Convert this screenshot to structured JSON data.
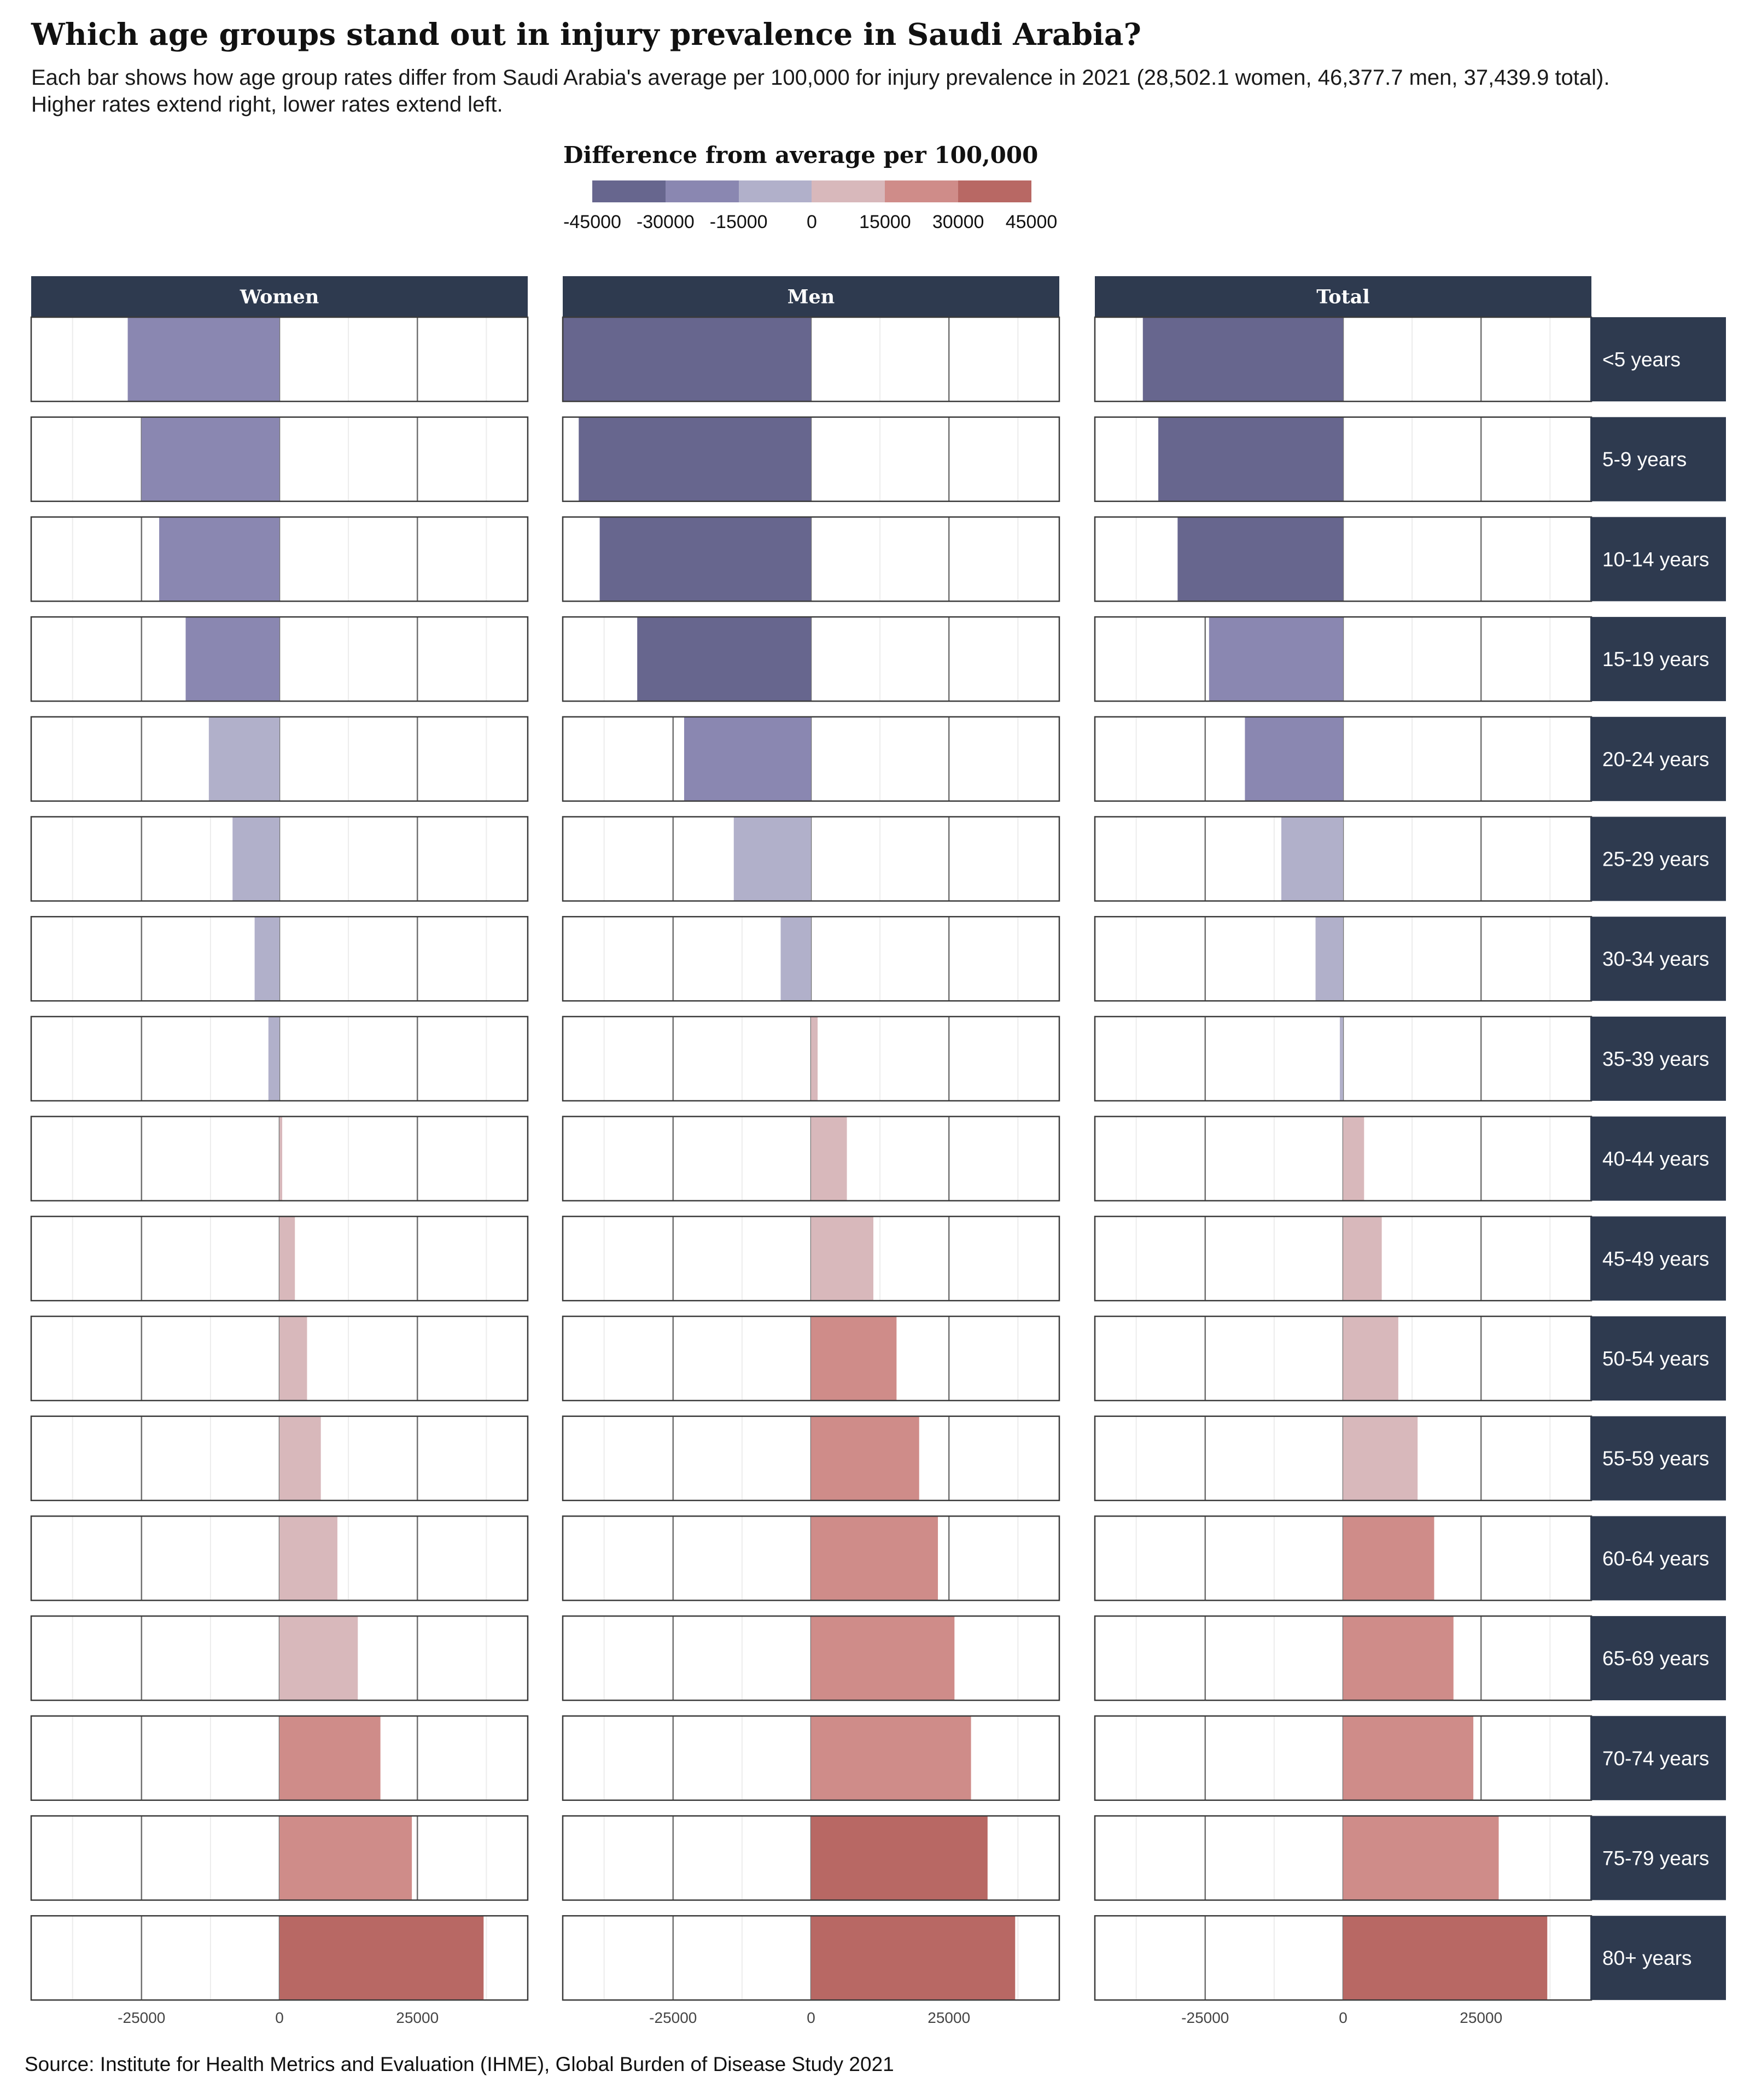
{
  "title": "Which age groups stand out in injury prevalence in Saudi Arabia?",
  "subtitle": "Each bar shows how age group rates differ from Saudi Arabia's average per 100,000 for injury prevalence in 2021 (28,502.1 women, 46,377.7 men, 37,439.9 total). Higher rates extend right, lower rates extend left.",
  "legend": {
    "title": "Difference from average per 100,000",
    "ticks": [
      "-45000",
      "-30000",
      "-15000",
      "0",
      "15000",
      "30000",
      "45000"
    ],
    "colors": [
      "#67668e",
      "#8a87b1",
      "#b1b0ca",
      "#d8b8bb",
      "#cf8c89",
      "#b86864"
    ]
  },
  "source": "Source: Institute for Health Metrics and Evaluation (IHME), Global Burden of Disease Study 2021",
  "chart_data": {
    "type": "bar",
    "orientation": "horizontal",
    "facets": [
      "Women",
      "Men",
      "Total"
    ],
    "categories": [
      "<5 years",
      "5-9 years",
      "10-14 years",
      "15-19 years",
      "20-24 years",
      "25-29 years",
      "30-34 years",
      "35-39 years",
      "40-44 years",
      "45-49 years",
      "50-54 years",
      "55-59 years",
      "60-64 years",
      "65-69 years",
      "70-74 years",
      "75-79 years",
      "80+ years"
    ],
    "series": [
      {
        "name": "Women",
        "values": [
          -27500,
          -25000,
          -21800,
          -17000,
          -12800,
          -8500,
          -4500,
          -2000,
          500,
          2800,
          5000,
          7500,
          10500,
          14200,
          18300,
          24000,
          37000
        ]
      },
      {
        "name": "Men",
        "values": [
          -45000,
          -42100,
          -38300,
          -31500,
          -23000,
          -14000,
          -5500,
          1200,
          6500,
          11300,
          15500,
          19600,
          23000,
          26000,
          29000,
          32000,
          37000
        ]
      },
      {
        "name": "Total",
        "values": [
          -36300,
          -33500,
          -30000,
          -24300,
          -17800,
          -11200,
          -5000,
          -600,
          3800,
          7000,
          10000,
          13500,
          16500,
          20000,
          23600,
          28200,
          37000
        ]
      }
    ],
    "x_ticks": [
      -25000,
      0,
      25000
    ],
    "x_tick_labels": [
      "-25000",
      "0",
      "25000"
    ],
    "xlim": [
      -45000,
      45000
    ],
    "color_scale": {
      "breaks": [
        -45000,
        -30000,
        -15000,
        0,
        15000,
        30000,
        45000
      ],
      "colors": [
        "#67668e",
        "#8a87b1",
        "#b1b0ca",
        "#d8b8bb",
        "#cf8c89",
        "#b86864"
      ]
    },
    "grid": true,
    "legend_position": "top"
  }
}
